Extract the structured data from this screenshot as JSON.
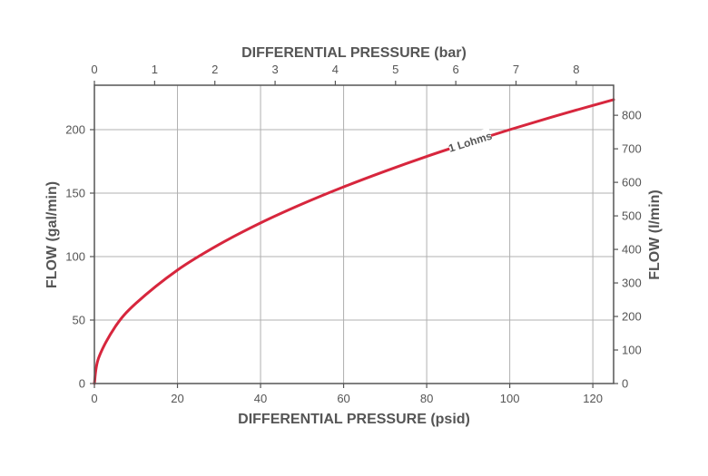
{
  "chart_data": {
    "type": "line",
    "series_label": "1 Lohms",
    "x_bottom": {
      "label": "DIFFERENTIAL PRESSURE (psid)",
      "range": [
        0,
        125
      ],
      "ticks": [
        0,
        20,
        40,
        60,
        80,
        100,
        120
      ]
    },
    "x_top": {
      "label": "DIFFERENTIAL PRESSURE (bar)",
      "range": [
        0,
        8.62
      ],
      "ticks": [
        0,
        1,
        2,
        3,
        4,
        5,
        6,
        7,
        8
      ]
    },
    "y_left": {
      "label": "FLOW (gal/min)",
      "range": [
        0,
        235
      ],
      "ticks": [
        0,
        50,
        100,
        150,
        200
      ]
    },
    "y_right": {
      "label": "FLOW (l/min)",
      "range": [
        0,
        889.6
      ],
      "ticks": [
        0,
        100,
        200,
        300,
        400,
        500,
        600,
        700,
        800
      ]
    },
    "grid": true,
    "series": [
      {
        "name": "1 Lohms",
        "color": "#d7263d",
        "points": [
          {
            "x": 0,
            "y": 0
          },
          {
            "x": 1,
            "y": 20
          },
          {
            "x": 5,
            "y": 44.7
          },
          {
            "x": 10,
            "y": 63.2
          },
          {
            "x": 20,
            "y": 89.4
          },
          {
            "x": 30,
            "y": 109.5
          },
          {
            "x": 40,
            "y": 126.5
          },
          {
            "x": 50,
            "y": 141.4
          },
          {
            "x": 60,
            "y": 154.9
          },
          {
            "x": 70,
            "y": 167.3
          },
          {
            "x": 80,
            "y": 178.9
          },
          {
            "x": 90,
            "y": 189.7
          },
          {
            "x": 100,
            "y": 200
          },
          {
            "x": 110,
            "y": 209.8
          },
          {
            "x": 120,
            "y": 219.1
          },
          {
            "x": 125,
            "y": 223.6
          }
        ]
      }
    ]
  }
}
